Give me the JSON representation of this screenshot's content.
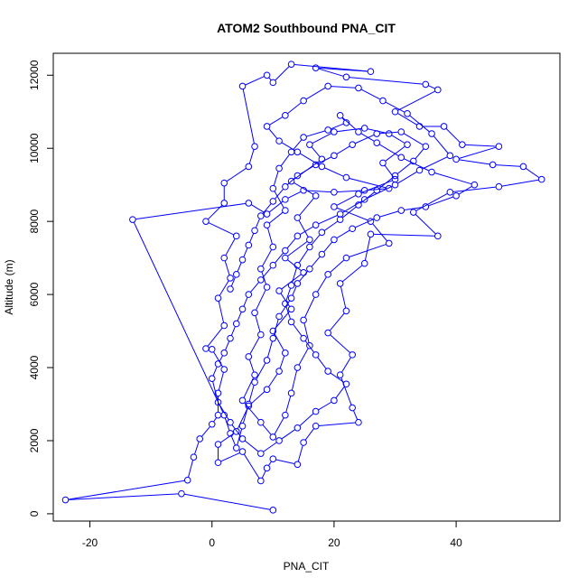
{
  "chart_data": {
    "type": "line",
    "title": "ATOM2 Southbound PNA_CIT",
    "xlabel": "PNA_CIT",
    "ylabel": "Altitude (m)",
    "xlim": [
      -26,
      57
    ],
    "ylim": [
      -200,
      12600
    ],
    "xticks": [
      -20,
      0,
      20,
      40
    ],
    "yticks": [
      0,
      2000,
      4000,
      6000,
      8000,
      10000,
      12000
    ],
    "grid": false,
    "legend": "none",
    "series": [
      {
        "color": "#0000ff",
        "marker": "open-circle",
        "points": [
          [
            10,
            100
          ],
          [
            -5,
            550
          ],
          [
            -24,
            380
          ],
          [
            -4,
            920
          ],
          [
            -3,
            1550
          ],
          [
            -2,
            2050
          ],
          [
            0,
            2450
          ],
          [
            1,
            2700
          ],
          [
            1,
            3300
          ],
          [
            2,
            3950
          ],
          [
            0,
            4500
          ],
          [
            -1,
            4520
          ],
          [
            2,
            5150
          ],
          [
            1,
            5900
          ],
          [
            3,
            6450
          ],
          [
            2,
            7000
          ],
          [
            4,
            7600
          ],
          [
            -1,
            8000
          ],
          [
            2,
            8500
          ],
          [
            2,
            9050
          ],
          [
            6,
            9500
          ],
          [
            7,
            10050
          ],
          [
            5,
            11700
          ],
          [
            9,
            12000
          ],
          [
            10,
            11800
          ],
          [
            13,
            12300
          ],
          [
            26,
            12100
          ],
          [
            17,
            12200
          ],
          [
            22,
            11950
          ],
          [
            35,
            11750
          ],
          [
            37,
            11600
          ],
          [
            30,
            11000
          ],
          [
            34,
            10600
          ],
          [
            38,
            10600
          ],
          [
            41,
            10100
          ],
          [
            47,
            10050
          ],
          [
            40,
            9700
          ],
          [
            46,
            9550
          ],
          [
            51,
            9500
          ],
          [
            54,
            9150
          ],
          [
            47,
            8950
          ],
          [
            39,
            8800
          ],
          [
            33,
            8250
          ],
          [
            37,
            7600
          ],
          [
            26,
            7650
          ],
          [
            25,
            6850
          ],
          [
            21,
            6300
          ],
          [
            22,
            5550
          ],
          [
            19,
            4950
          ],
          [
            23,
            4350
          ],
          [
            21,
            3800
          ],
          [
            23,
            2900
          ],
          [
            24,
            2500
          ],
          [
            17,
            2400
          ],
          [
            15,
            1950
          ],
          [
            14,
            1350
          ],
          [
            10,
            1500
          ],
          [
            9,
            1250
          ],
          [
            8,
            900
          ],
          [
            5,
            1700
          ],
          [
            1,
            1400
          ],
          [
            1,
            1900
          ],
          [
            4,
            2250
          ],
          [
            6,
            2950
          ],
          [
            9,
            3400
          ],
          [
            11,
            3900
          ],
          [
            12,
            4400
          ],
          [
            10,
            5000
          ],
          [
            13,
            5600
          ],
          [
            11,
            6100
          ],
          [
            15,
            6600
          ],
          [
            12,
            7000
          ],
          [
            16,
            7500
          ],
          [
            14,
            8100
          ],
          [
            17,
            8700
          ],
          [
            13,
            9100
          ],
          [
            18,
            9700
          ],
          [
            16,
            10100
          ],
          [
            20,
            10450
          ],
          [
            25,
            10550
          ],
          [
            29,
            10400
          ],
          [
            32,
            10100
          ],
          [
            28,
            9600
          ],
          [
            30,
            9150
          ],
          [
            24,
            8750
          ],
          [
            20,
            8400
          ],
          [
            26,
            8000
          ],
          [
            29,
            7400
          ],
          [
            22,
            7000
          ],
          [
            19,
            6550
          ],
          [
            17,
            6000
          ],
          [
            15,
            5300
          ],
          [
            16,
            4600
          ],
          [
            14,
            4000
          ],
          [
            13,
            3300
          ],
          [
            12,
            2700
          ],
          [
            10,
            2100
          ],
          [
            8,
            2500
          ],
          [
            5,
            3100
          ],
          [
            7,
            3800
          ],
          [
            6,
            4300
          ],
          [
            8,
            4900
          ],
          [
            7,
            5500
          ],
          [
            9,
            6200
          ],
          [
            8,
            6700
          ],
          [
            10,
            7300
          ],
          [
            9,
            7900
          ],
          [
            12,
            8300
          ],
          [
            10,
            8900
          ],
          [
            11,
            9450
          ],
          [
            13,
            9900
          ],
          [
            15,
            10300
          ],
          [
            19,
            10500
          ],
          [
            22,
            10700
          ],
          [
            21,
            10900
          ],
          [
            24,
            10450
          ],
          [
            27,
            10150
          ],
          [
            31,
            9750
          ],
          [
            36,
            9350
          ],
          [
            43,
            9000
          ],
          [
            40,
            8700
          ],
          [
            35,
            8400
          ],
          [
            31,
            8300
          ],
          [
            27,
            8100
          ],
          [
            23,
            7800
          ],
          [
            20,
            7500
          ],
          [
            18,
            7100
          ],
          [
            16,
            6700
          ],
          [
            14,
            6300
          ],
          [
            13,
            5900
          ],
          [
            11,
            5400
          ],
          [
            10,
            4800
          ],
          [
            9,
            4200
          ],
          [
            7,
            3600
          ],
          [
            6,
            3000
          ],
          [
            5,
            2400
          ],
          [
            4,
            1800
          ],
          [
            3,
            2200
          ],
          [
            2,
            2700
          ],
          [
            -13,
            8050
          ],
          [
            6,
            8500
          ],
          [
            9,
            8200
          ],
          [
            12,
            8600
          ],
          [
            15,
            8850
          ],
          [
            20,
            8800
          ],
          [
            25,
            8850
          ],
          [
            29,
            8900
          ],
          [
            22,
            9200
          ],
          [
            18,
            9500
          ],
          [
            14,
            9900
          ],
          [
            11,
            10200
          ],
          [
            9,
            10600
          ],
          [
            12,
            10900
          ],
          [
            15,
            11300
          ],
          [
            19,
            11700
          ],
          [
            24,
            11650
          ],
          [
            28,
            11300
          ],
          [
            32,
            10950
          ],
          [
            36,
            10400
          ],
          [
            39,
            9800
          ],
          [
            34,
            9400
          ],
          [
            30,
            9000
          ],
          [
            25,
            8600
          ],
          [
            21,
            8200
          ],
          [
            17,
            7900
          ],
          [
            14,
            7600
          ],
          [
            12,
            7200
          ],
          [
            10,
            6800
          ],
          [
            8,
            6400
          ],
          [
            6,
            6000
          ],
          [
            5,
            5600
          ],
          [
            4,
            5200
          ],
          [
            3,
            4800
          ],
          [
            2,
            4400
          ],
          [
            1,
            4100
          ],
          [
            0,
            3700
          ],
          [
            1,
            3050
          ],
          [
            3,
            2500
          ],
          [
            5,
            2050
          ],
          [
            8,
            1650
          ],
          [
            11,
            2000
          ],
          [
            14,
            2350
          ],
          [
            17,
            2800
          ],
          [
            20,
            3100
          ],
          [
            22,
            3550
          ],
          [
            19,
            3900
          ],
          [
            17,
            4350
          ],
          [
            15,
            4800
          ],
          [
            13,
            5250
          ],
          [
            12,
            5750
          ],
          [
            13,
            6250
          ],
          [
            14,
            6800
          ],
          [
            16,
            7300
          ],
          [
            18,
            7700
          ],
          [
            21,
            8050
          ],
          [
            24,
            8450
          ],
          [
            27,
            8850
          ],
          [
            30,
            9250
          ],
          [
            33,
            9650
          ],
          [
            35,
            10050
          ],
          [
            31,
            10450
          ],
          [
            27,
            10400
          ],
          [
            23,
            10100
          ],
          [
            20,
            9800
          ],
          [
            17,
            9550
          ],
          [
            14,
            9250
          ],
          [
            12,
            8950
          ],
          [
            10,
            8550
          ],
          [
            8,
            8150
          ],
          [
            7,
            7750
          ],
          [
            6,
            7350
          ],
          [
            5,
            6950
          ],
          [
            4,
            6550
          ],
          [
            3,
            6150
          ]
        ]
      }
    ]
  }
}
